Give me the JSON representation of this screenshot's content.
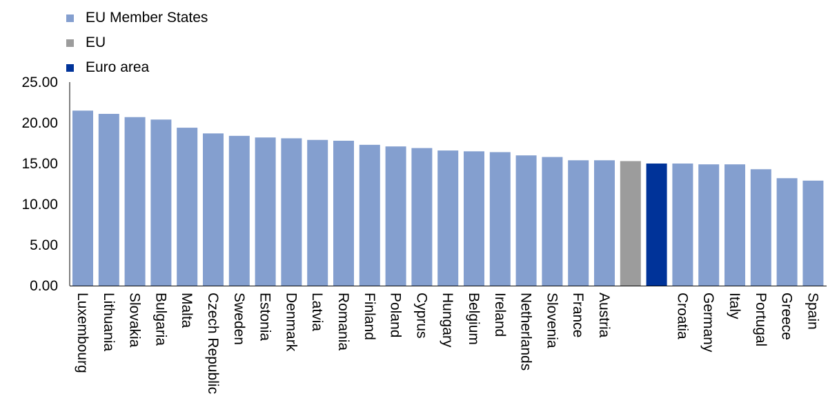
{
  "chart_data": {
    "type": "bar",
    "categories": [
      "Luxembourg",
      "Lithuania",
      "Slovakia",
      "Bulgaria",
      "Malta",
      "Czech Republic",
      "Sweden",
      "Estonia",
      "Denmark",
      "Latvia",
      "Romania",
      "Finland",
      "Poland",
      "Cyprus",
      "Hungary",
      "Belgium",
      "Ireland",
      "Netherlands",
      "Slovenia",
      "France",
      "Austria",
      "",
      "",
      "Croatia",
      "Germany",
      "Italy",
      "Portugal",
      "Greece",
      "Spain"
    ],
    "values": [
      21.5,
      21.1,
      20.7,
      20.4,
      19.4,
      18.7,
      18.4,
      18.2,
      18.1,
      17.9,
      17.8,
      17.3,
      17.1,
      16.9,
      16.6,
      16.5,
      16.4,
      16.0,
      15.8,
      15.4,
      15.4,
      15.3,
      15.0,
      15.0,
      14.9,
      14.9,
      14.3,
      13.2,
      12.9
    ],
    "groups": [
      "member",
      "member",
      "member",
      "member",
      "member",
      "member",
      "member",
      "member",
      "member",
      "member",
      "member",
      "member",
      "member",
      "member",
      "member",
      "member",
      "member",
      "member",
      "member",
      "member",
      "member",
      "eu",
      "euro",
      "member",
      "member",
      "member",
      "member",
      "member",
      "member"
    ],
    "colors": {
      "member": "#849fcf",
      "eu": "#9c9c9c",
      "euro": "#003399"
    },
    "legend": [
      {
        "label": "EU Member States",
        "group": "member"
      },
      {
        "label": "EU",
        "group": "eu"
      },
      {
        "label": "Euro area",
        "group": "euro"
      }
    ],
    "y_ticks": [
      "0.00",
      "5.00",
      "10.00",
      "15.00",
      "20.00",
      "25.00"
    ],
    "ylim": [
      0,
      25
    ],
    "grid": false,
    "legend_position": "top-left"
  }
}
